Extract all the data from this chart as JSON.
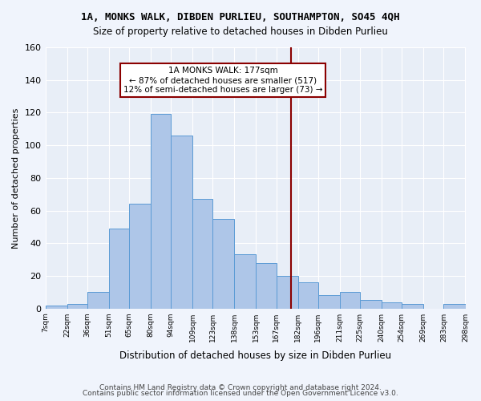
{
  "title": "1A, MONKS WALK, DIBDEN PURLIEU, SOUTHAMPTON, SO45 4QH",
  "subtitle": "Size of property relative to detached houses in Dibden Purlieu",
  "xlabel": "Distribution of detached houses by size in Dibden Purlieu",
  "ylabel": "Number of detached properties",
  "bar_color": "#aec6e8",
  "bar_edge_color": "#5b9bd5",
  "background_color": "#e8eef7",
  "grid_color": "#ffffff",
  "vline_x": 177,
  "vline_color": "#8b0000",
  "annotation_title": "1A MONKS WALK: 177sqm",
  "annotation_line1": "← 87% of detached houses are smaller (517)",
  "annotation_line2": "12% of semi-detached houses are larger (73) →",
  "annotation_box_color": "#8b0000",
  "footer1": "Contains HM Land Registry data © Crown copyright and database right 2024.",
  "footer2": "Contains public sector information licensed under the Open Government Licence v3.0.",
  "bin_edges": [
    7,
    22,
    36,
    51,
    65,
    80,
    94,
    109,
    123,
    138,
    153,
    167,
    182,
    196,
    211,
    225,
    240,
    254,
    269,
    283,
    298
  ],
  "bin_labels": [
    "7sqm",
    "22sqm",
    "36sqm",
    "51sqm",
    "65sqm",
    "80sqm",
    "94sqm",
    "109sqm",
    "123sqm",
    "138sqm",
    "153sqm",
    "167sqm",
    "182sqm",
    "196sqm",
    "211sqm",
    "225sqm",
    "240sqm",
    "254sqm",
    "269sqm",
    "283sqm",
    "298sqm"
  ],
  "heights": [
    2,
    3,
    10,
    49,
    64,
    119,
    106,
    67,
    55,
    33,
    28,
    20,
    16,
    8,
    10,
    5,
    4,
    3,
    0,
    3
  ],
  "ylim": [
    0,
    160
  ],
  "yticks": [
    0,
    20,
    40,
    60,
    80,
    100,
    120,
    140,
    160
  ]
}
